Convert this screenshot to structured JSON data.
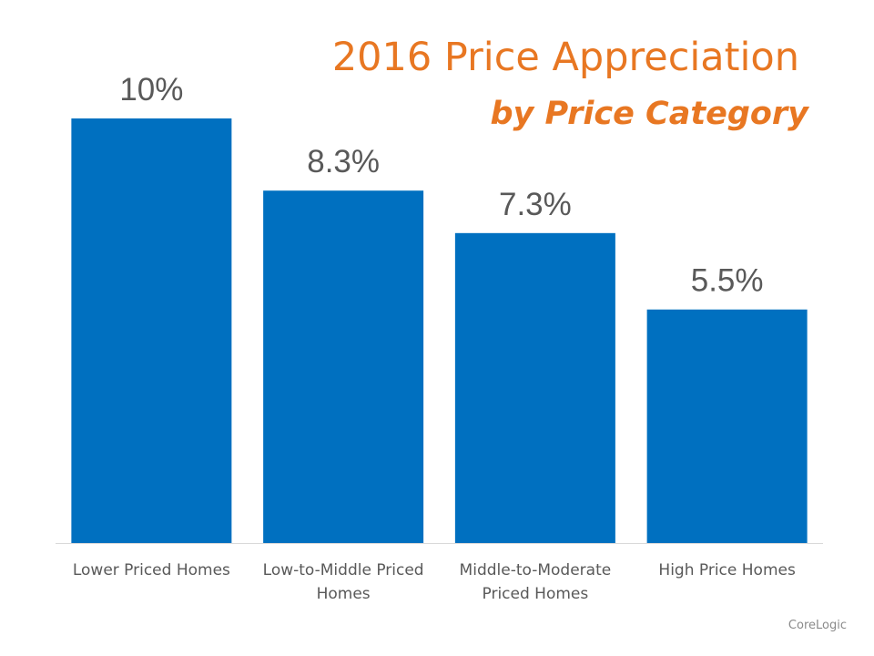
{
  "chart_data": {
    "type": "bar",
    "title": "2016 Price Appreciation",
    "subtitle": "by Price Category",
    "categories": [
      "Lower Priced Homes",
      "Low-to-Middle Priced Homes",
      "Middle-to-Moderate Priced Homes",
      "High Price Homes"
    ],
    "category_lines": [
      [
        "Lower Priced Homes"
      ],
      [
        "Low-to-Middle Priced",
        "Homes"
      ],
      [
        "Middle-to-Moderate",
        "Priced Homes"
      ],
      [
        "High Price Homes"
      ]
    ],
    "values": [
      10,
      8.3,
      7.3,
      5.5
    ],
    "data_labels": [
      "10%",
      "8.3%",
      "7.3%",
      "5.5%"
    ],
    "xlabel": "",
    "ylabel": "",
    "ylim": [
      0,
      10
    ],
    "grid": false,
    "legend": "none",
    "colors": {
      "bar": "#0070C0",
      "title": "#E87722",
      "labels": "#595959",
      "axis": "#D9D9D9"
    }
  },
  "source": "CoreLogic"
}
